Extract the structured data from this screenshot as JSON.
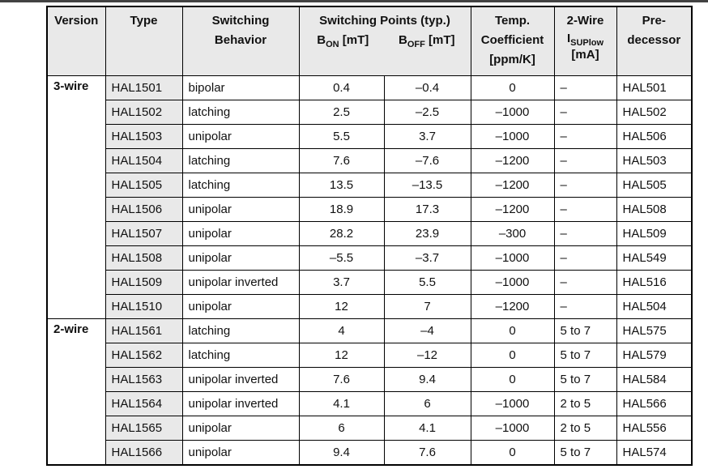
{
  "colors": {
    "header_bg": "#e9e9e9",
    "type_cell_bg": "#e9e9e9",
    "border": "#000000",
    "top_strip": "#424242"
  },
  "table": {
    "header": {
      "version": "Version",
      "type": "Type",
      "behavior": "Switching\nBehavior",
      "switching_points_title": "Switching Points (typ.)",
      "b_on": {
        "base": "B",
        "sub": "ON",
        "unit": " [mT]"
      },
      "b_off": {
        "base": "B",
        "sub": "OFF",
        "unit": " [mT]"
      },
      "temp_coefficient": "Temp.\nCoefficient\n[ppm/K]",
      "two_wire": {
        "line1": "2-Wire",
        "base": "I",
        "sub": "SUPlow",
        "unit": "[mA]"
      },
      "predecessor": "Pre-\ndecessor"
    },
    "groups": [
      {
        "version": "3-wire",
        "rows": [
          [
            "HAL1501",
            "bipolar",
            "0.4",
            "–0.4",
            "0",
            "–",
            "HAL501"
          ],
          [
            "HAL1502",
            "latching",
            "2.5",
            "–2.5",
            "–1000",
            "–",
            "HAL502"
          ],
          [
            "HAL1503",
            "unipolar",
            "5.5",
            "3.7",
            "–1000",
            "–",
            "HAL506"
          ],
          [
            "HAL1504",
            "latching",
            "7.6",
            "–7.6",
            "–1200",
            "–",
            "HAL503"
          ],
          [
            "HAL1505",
            "latching",
            "13.5",
            "–13.5",
            "–1200",
            "–",
            "HAL505"
          ],
          [
            "HAL1506",
            "unipolar",
            "18.9",
            "17.3",
            "–1200",
            "–",
            "HAL508"
          ],
          [
            "HAL1507",
            "unipolar",
            "28.2",
            "23.9",
            "–300",
            "–",
            "HAL509"
          ],
          [
            "HAL1508",
            "unipolar",
            "–5.5",
            "–3.7",
            "–1000",
            "–",
            "HAL549"
          ],
          [
            "HAL1509",
            "unipolar inverted",
            "3.7",
            "5.5",
            "–1000",
            "–",
            "HAL516"
          ],
          [
            "HAL1510",
            "unipolar",
            "12",
            "7",
            "–1200",
            "–",
            "HAL504"
          ]
        ]
      },
      {
        "version": "2-wire",
        "rows": [
          [
            "HAL1561",
            "latching",
            "4",
            "–4",
            "0",
            "5 to 7",
            "HAL575"
          ],
          [
            "HAL1562",
            "latching",
            "12",
            "–12",
            "0",
            "5 to 7",
            "HAL579"
          ],
          [
            "HAL1563",
            "unipolar inverted",
            "7.6",
            "9.4",
            "0",
            "5 to 7",
            "HAL584"
          ],
          [
            "HAL1564",
            "unipolar inverted",
            "4.1",
            "6",
            "–1000",
            "2 to 5",
            "HAL566"
          ],
          [
            "HAL1565",
            "unipolar",
            "6",
            "4.1",
            "–1000",
            "2 to 5",
            "HAL556"
          ],
          [
            "HAL1566",
            "unipolar",
            "9.4",
            "7.6",
            "0",
            "5 to 7",
            "HAL574"
          ]
        ]
      }
    ]
  }
}
